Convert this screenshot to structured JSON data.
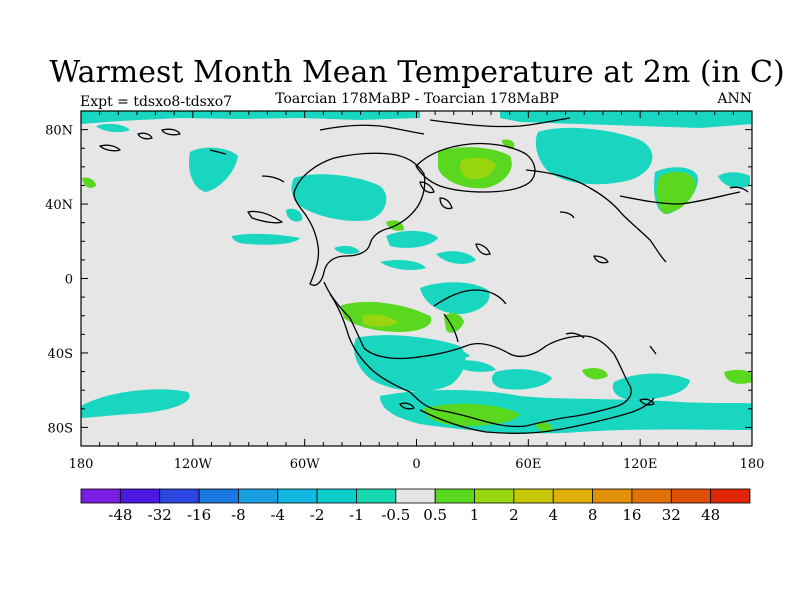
{
  "title": "Warmest Month Mean Temperature at 2m (in C)",
  "subtitle_left": "Expt = tdsxo8-tdsxo7",
  "subtitle_center": "Toarcian 178MaBP - Toarcian 178MaBP",
  "subtitle_right": "ANN",
  "x_ticks": [
    "180",
    "120W",
    "60W",
    "0",
    "60E",
    "120E",
    "180"
  ],
  "y_ticks": [
    "80N",
    "40N",
    "0",
    "40S",
    "80S"
  ],
  "colorbar": {
    "labels": [
      "-48",
      "-32",
      "-16",
      "-8",
      "-4",
      "-2",
      "-1",
      "-0.5",
      "0.5",
      "1",
      "2",
      "4",
      "8",
      "16",
      "32",
      "48"
    ],
    "colors": [
      "#7a1de0",
      "#4a1ae0",
      "#2a48e0",
      "#1a78e0",
      "#1aa0e0",
      "#12b8e0",
      "#10cccc",
      "#18d8b0",
      "#e6e6e6",
      "#5ad820",
      "#98d610",
      "#c8c808",
      "#e0b008",
      "#e09008",
      "#e07008",
      "#e05008",
      "#e02808"
    ]
  },
  "map": {
    "background_color": "#e6e6e6",
    "negative_color": "#18d6c0",
    "positive_color": "#5ad820",
    "strong_positive_color": "#98d610"
  }
}
